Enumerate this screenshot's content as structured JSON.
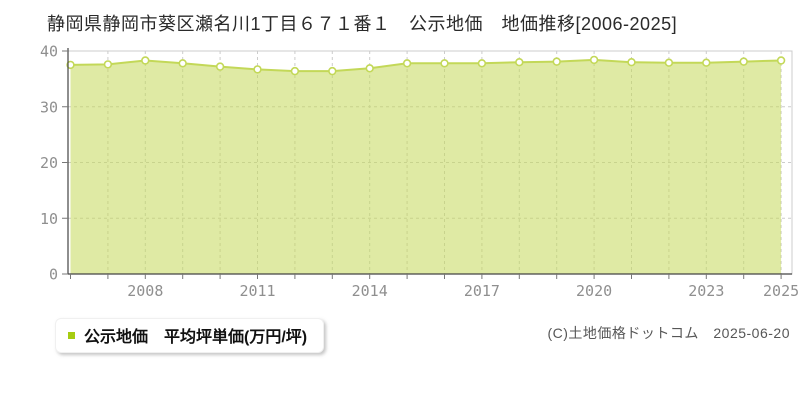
{
  "title": "静岡県静岡市葵区瀬名川1丁目６７１番１　公示地価　地価推移[2006-2025]",
  "legend": {
    "label": "公示地価　平均坪単価(万円/坪)",
    "swatch_color": "#a6cc11"
  },
  "copyright": "(C)土地価格ドットコム　2025-06-20",
  "chart_data": {
    "type": "area",
    "title": "静岡県静岡市葵区瀬名川1丁目６７１番１ 公示地価 地価推移[2006-2025]",
    "x": [
      2006,
      2007,
      2008,
      2009,
      2010,
      2011,
      2012,
      2013,
      2014,
      2015,
      2016,
      2017,
      2018,
      2019,
      2020,
      2021,
      2022,
      2023,
      2024,
      2025
    ],
    "series": [
      {
        "name": "公示地価 平均坪単価(万円/坪)",
        "values": [
          37.5,
          37.6,
          38.3,
          37.8,
          37.2,
          36.7,
          36.4,
          36.4,
          36.9,
          37.8,
          37.8,
          37.8,
          38.0,
          38.1,
          38.4,
          38.0,
          37.9,
          37.9,
          38.1,
          38.3
        ]
      }
    ],
    "xlabel": "",
    "ylabel": "",
    "unit": "万円/坪",
    "ylim": [
      0,
      40
    ],
    "yticks": [
      0,
      10,
      20,
      30,
      40
    ],
    "xtick_labels": [
      2008,
      2011,
      2014,
      2017,
      2020,
      2023,
      2025
    ],
    "grid": true,
    "legend_position": "bottom-left",
    "colors": {
      "line": "#c3d858",
      "fill": "rgba(196,217,90,0.55)",
      "marker_fill": "#ffffff",
      "grid": "#cccccc",
      "axis": "#444444",
      "tick_label": "#8f8f8f"
    }
  }
}
